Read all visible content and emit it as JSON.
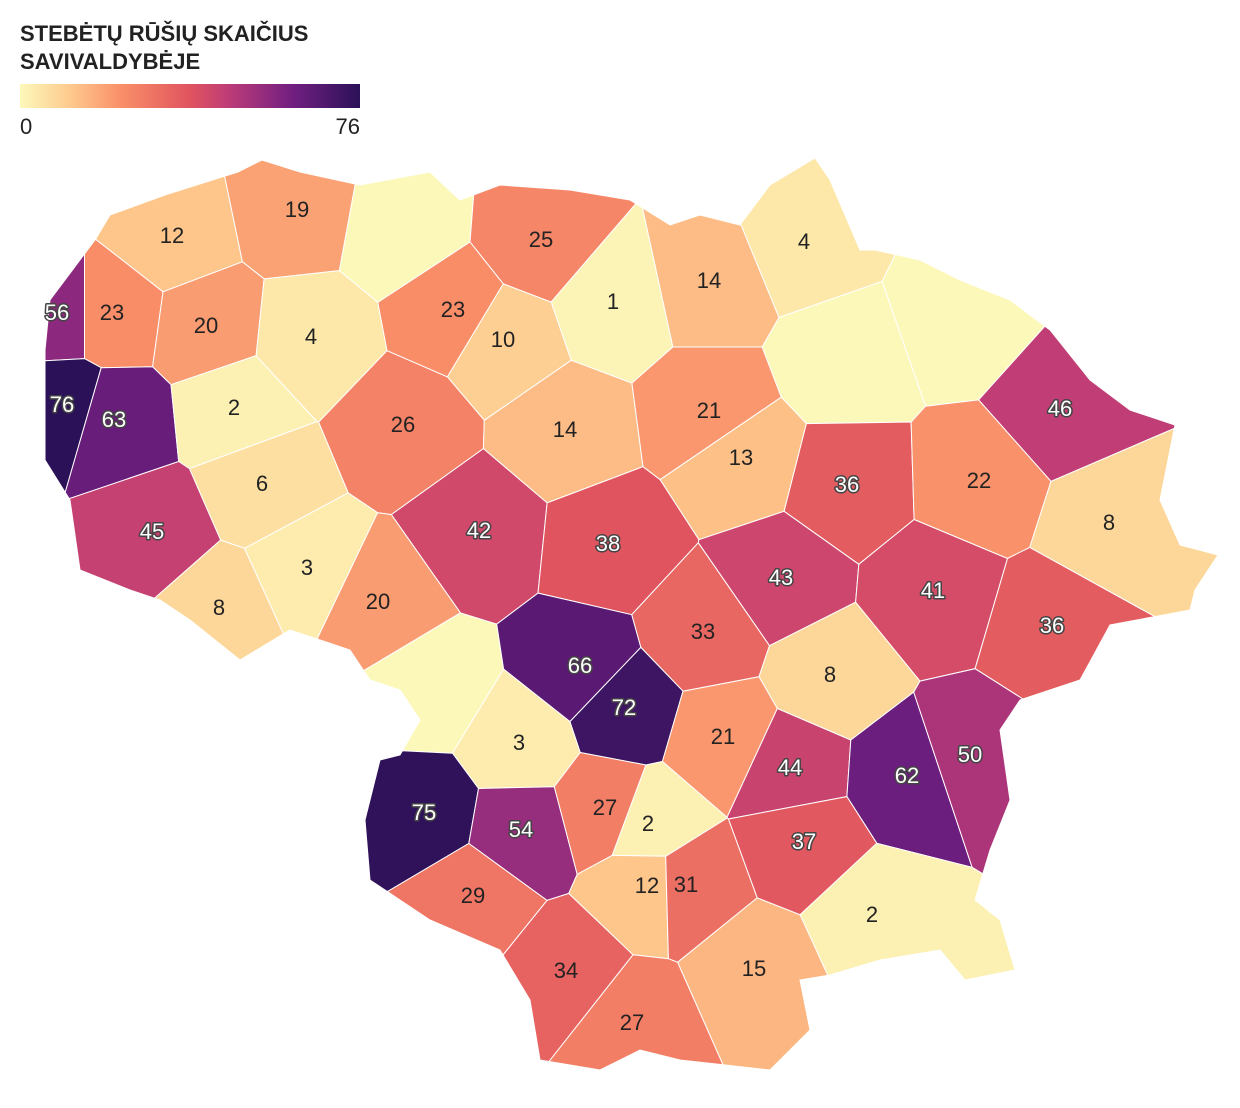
{
  "title": "STEBĖTŲ RŪŠIŲ SKAIČIUS SAVIVALDYBĖJE",
  "legend": {
    "min": 0,
    "max": 76
  },
  "regions": [
    12,
    19,
    25,
    1,
    14,
    4,
    56,
    23,
    20,
    4,
    23,
    10,
    76,
    63,
    2,
    26,
    14,
    21,
    13,
    36,
    46,
    22,
    8,
    6,
    45,
    42,
    38,
    43,
    41,
    36,
    3,
    8,
    20,
    33,
    66,
    72,
    8,
    21,
    3,
    44,
    62,
    50,
    75,
    54,
    27,
    2,
    37,
    29,
    12,
    31,
    2,
    34,
    15,
    27
  ]
}
